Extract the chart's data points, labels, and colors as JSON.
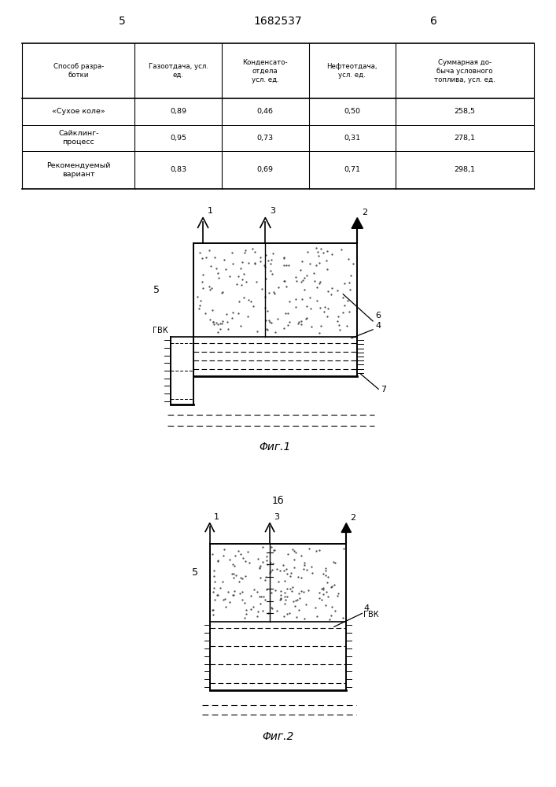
{
  "page_numbers": [
    "5",
    "1682537",
    "6"
  ],
  "table": {
    "headers": [
      "Способ разра-\nботки",
      "Газоотдача, усл.\nед.",
      "Конденсато-\nотдела\nусл. ед.",
      "Нефтеотдача,\nусл. ед.",
      "Суммарная до-\nбыча условного\nтоплива, усл. ед."
    ],
    "rows": [
      [
        "«Сухое коле»\nСайклинг-\nпроцесс\nРекомендуемый\nвариант",
        "0,89\n\n0,95\n\n0,83",
        "0,46\n\n0,73\n\n0,69",
        "0,50\n\n0,31\n\n0,71",
        "258,5\n\n278,1\n\n298,1"
      ]
    ]
  },
  "table_rows_separate": [
    [
      "«Сухое коле»",
      "0,89",
      "0,46",
      "0,50",
      "258,5"
    ],
    [
      "Сайклинг-\nпроцесс",
      "0,95",
      "0,73",
      "0,31",
      "278,1"
    ],
    [
      "Рекомендуемый\nвариант",
      "0,83",
      "0,69",
      "0,71",
      "298,1"
    ]
  ],
  "fig1_caption": "Φиг.1",
  "fig2_caption": "Φиг.2",
  "page_break_label": "1б",
  "bg_color": "#ffffff",
  "line_color": "#000000",
  "dot_color": "#444444"
}
